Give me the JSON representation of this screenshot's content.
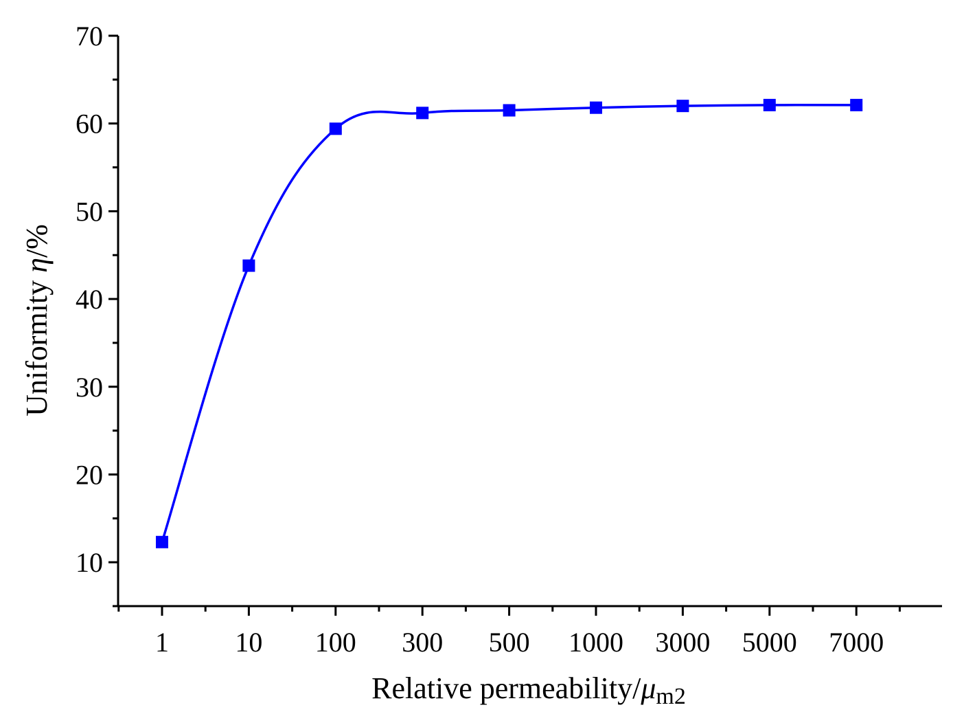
{
  "chart_data": {
    "type": "line",
    "title": "",
    "xlabel": {
      "main": "Relative permeability/",
      "symbol": "μ",
      "subscript": "m2"
    },
    "ylabel": {
      "main": "Uniformity ",
      "symbol": "η",
      "unit": "/%"
    },
    "categories": [
      "1",
      "10",
      "100",
      "300",
      "500",
      "1000",
      "3000",
      "5000",
      "7000"
    ],
    "series": [
      {
        "values": [
          12.3,
          43.8,
          59.4,
          61.2,
          61.5,
          61.8,
          62.0,
          62.1,
          62.1
        ]
      }
    ],
    "ylim": [
      5,
      70
    ],
    "yticks": [
      "10",
      "20",
      "30",
      "40",
      "50",
      "60",
      "70"
    ],
    "x_axis_type": "categorical (evenly spaced)",
    "marker": "square",
    "line_style": "smoothed spline",
    "grid": false,
    "legend": "none",
    "colors": {
      "series": "#0000ff",
      "axes": "#000000"
    }
  }
}
